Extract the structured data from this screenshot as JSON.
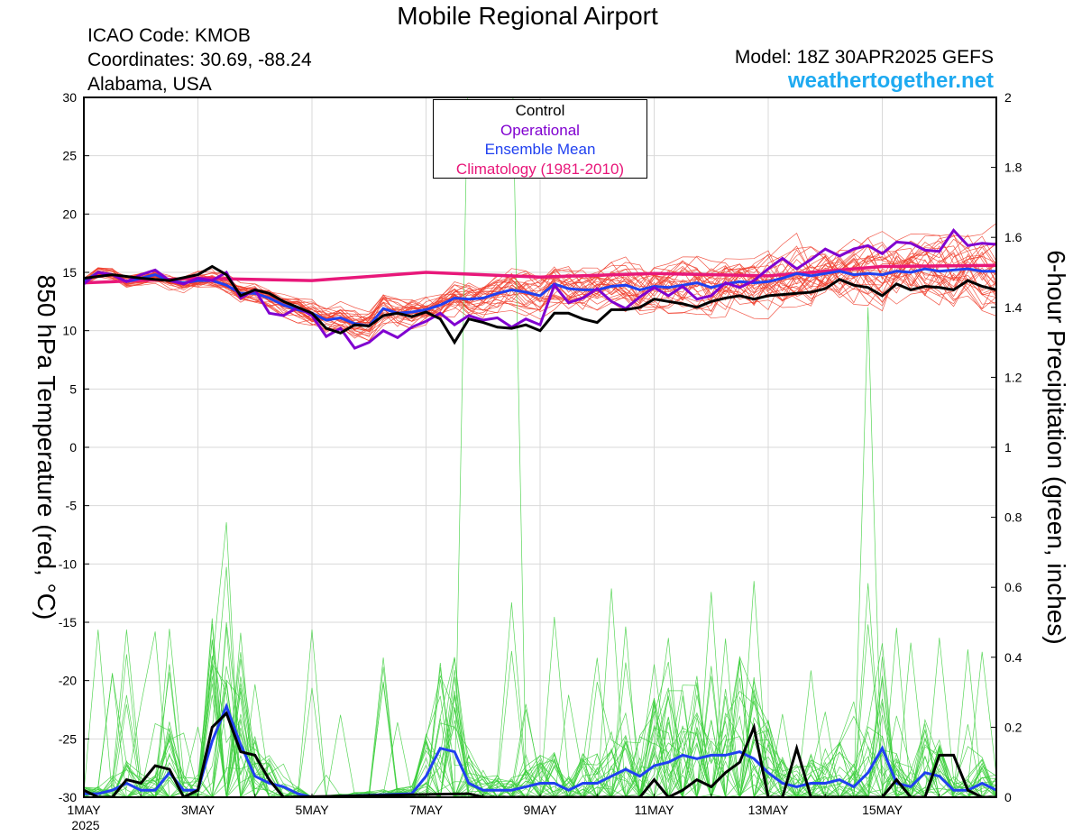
{
  "header": {
    "title": "Mobile Regional Airport",
    "icao": "ICAO Code: KMOB",
    "coordinates": "Coordinates: 30.69, -88.24",
    "region": "Alabama, USA",
    "model": "Model: 18Z 30APR2025 GEFS",
    "site": "weathertogether.net"
  },
  "legend": {
    "control": "Control",
    "operational": "Operational",
    "ensemble_mean": "Ensemble Mean",
    "climatology": "Climatology (1981-2010)"
  },
  "colors": {
    "control": "#000000",
    "operational": "#8000d0",
    "ensemble_mean": "#2040f0",
    "climatology": "#e8187a",
    "temp_members": "#f03c2a",
    "precip_members": "#3ccf3c",
    "site": "#1eaaf1"
  },
  "chart_data": {
    "type": "line",
    "ylabel": "850 hPa Temperature (red, °C)",
    "y2label": "6-hour Precipitation (green, inches)",
    "ylim": [
      -30,
      30
    ],
    "y2lim": [
      0,
      2
    ],
    "yticks": [
      30,
      25,
      20,
      15,
      10,
      5,
      0,
      -5,
      -10,
      -15,
      -20,
      -25,
      -30
    ],
    "y2ticks": [
      2,
      1.8,
      1.6,
      1.4,
      1.2,
      1,
      0.8,
      0.6,
      0.4,
      0.2,
      0
    ],
    "xlim_days": [
      0,
      16
    ],
    "x_ticks": [
      {
        "day": 0,
        "label": "1MAY",
        "sub": "2025"
      },
      {
        "day": 2,
        "label": "3MAY"
      },
      {
        "day": 4,
        "label": "5MAY"
      },
      {
        "day": 6,
        "label": "7MAY"
      },
      {
        "day": 8,
        "label": "9MAY"
      },
      {
        "day": 10,
        "label": "11MAY"
      },
      {
        "day": 12,
        "label": "13MAY"
      },
      {
        "day": 14,
        "label": "15MAY"
      }
    ],
    "temperature": {
      "climatology": [
        [
          0,
          14.1
        ],
        [
          2,
          14.5
        ],
        [
          4,
          14.3
        ],
        [
          6,
          15.0
        ],
        [
          8,
          14.6
        ],
        [
          10,
          14.9
        ],
        [
          12,
          14.7
        ],
        [
          14,
          15.5
        ],
        [
          16,
          15.6
        ]
      ],
      "control": [
        [
          0,
          14.5
        ],
        [
          0.5,
          14.8
        ],
        [
          1,
          14.5
        ],
        [
          1.5,
          14.3
        ],
        [
          2,
          14.8
        ],
        [
          2.25,
          15.5
        ],
        [
          2.5,
          14.8
        ],
        [
          2.75,
          13.0
        ],
        [
          3,
          13.5
        ],
        [
          3.25,
          13.2
        ],
        [
          3.5,
          12.5
        ],
        [
          3.75,
          12.0
        ],
        [
          4,
          11.5
        ],
        [
          4.25,
          10.2
        ],
        [
          4.5,
          9.8
        ],
        [
          4.75,
          10.5
        ],
        [
          5,
          10.4
        ],
        [
          5.25,
          11.3
        ],
        [
          5.5,
          11.5
        ],
        [
          5.75,
          11.2
        ],
        [
          6,
          11.6
        ],
        [
          6.25,
          11.0
        ],
        [
          6.5,
          9.0
        ],
        [
          6.75,
          11.0
        ],
        [
          7,
          10.7
        ],
        [
          7.25,
          10.3
        ],
        [
          7.5,
          10.2
        ],
        [
          7.75,
          10.5
        ],
        [
          8,
          10.0
        ],
        [
          8.25,
          11.5
        ],
        [
          8.5,
          11.5
        ],
        [
          8.75,
          11.0
        ],
        [
          9,
          10.7
        ],
        [
          9.25,
          11.8
        ],
        [
          9.5,
          11.8
        ],
        [
          9.75,
          12.0
        ],
        [
          10,
          12.7
        ],
        [
          10.25,
          12.5
        ],
        [
          10.5,
          12.3
        ],
        [
          10.75,
          12.0
        ],
        [
          11,
          12.5
        ],
        [
          11.25,
          12.8
        ],
        [
          11.5,
          13.0
        ],
        [
          11.75,
          12.7
        ],
        [
          12,
          13.0
        ],
        [
          12.25,
          13.1
        ],
        [
          12.5,
          13.2
        ],
        [
          12.75,
          13.3
        ],
        [
          13,
          13.6
        ],
        [
          13.25,
          14.4
        ],
        [
          13.5,
          13.9
        ],
        [
          13.75,
          13.7
        ],
        [
          14,
          13.0
        ],
        [
          14.25,
          14.0
        ],
        [
          14.5,
          13.5
        ],
        [
          14.75,
          13.8
        ],
        [
          15,
          13.7
        ],
        [
          15.25,
          13.5
        ],
        [
          15.5,
          14.3
        ],
        [
          15.75,
          13.8
        ],
        [
          16,
          13.5
        ]
      ],
      "operational": [
        [
          0,
          14.0
        ],
        [
          0.25,
          15.0
        ],
        [
          0.5,
          14.8
        ],
        [
          0.75,
          14.2
        ],
        [
          1,
          14.8
        ],
        [
          1.25,
          15.2
        ],
        [
          1.5,
          14.3
        ],
        [
          1.75,
          14.0
        ],
        [
          2,
          14.5
        ],
        [
          2.25,
          14.3
        ],
        [
          2.5,
          15.0
        ],
        [
          2.75,
          12.8
        ],
        [
          3,
          13.5
        ],
        [
          3.25,
          11.5
        ],
        [
          3.5,
          11.3
        ],
        [
          3.75,
          12.0
        ],
        [
          4,
          11.3
        ],
        [
          4.25,
          9.5
        ],
        [
          4.5,
          10.2
        ],
        [
          4.75,
          8.5
        ],
        [
          5,
          9.0
        ],
        [
          5.25,
          10.0
        ],
        [
          5.5,
          9.4
        ],
        [
          5.75,
          10.3
        ],
        [
          6,
          10.8
        ],
        [
          6.25,
          11.5
        ],
        [
          6.5,
          10.5
        ],
        [
          6.75,
          11.3
        ],
        [
          7,
          10.9
        ],
        [
          7.25,
          11.1
        ],
        [
          7.5,
          10.3
        ],
        [
          7.75,
          11.0
        ],
        [
          8,
          10.5
        ],
        [
          8.25,
          13.9
        ],
        [
          8.5,
          12.4
        ],
        [
          8.75,
          12.8
        ],
        [
          9,
          13.6
        ],
        [
          9.25,
          12.5
        ],
        [
          9.5,
          11.9
        ],
        [
          9.75,
          12.9
        ],
        [
          10,
          13.7
        ],
        [
          10.25,
          13.0
        ],
        [
          10.5,
          13.8
        ],
        [
          10.75,
          12.7
        ],
        [
          11,
          13.0
        ],
        [
          11.25,
          14.1
        ],
        [
          11.5,
          13.7
        ],
        [
          11.75,
          14.3
        ],
        [
          12,
          15.3
        ],
        [
          12.25,
          16.2
        ],
        [
          12.5,
          15.3
        ],
        [
          12.75,
          16.1
        ],
        [
          13,
          17.0
        ],
        [
          13.25,
          16.4
        ],
        [
          13.5,
          17.0
        ],
        [
          13.75,
          17.3
        ],
        [
          14,
          16.6
        ],
        [
          14.25,
          17.6
        ],
        [
          14.5,
          17.5
        ],
        [
          14.75,
          16.9
        ],
        [
          15,
          16.8
        ],
        [
          15.25,
          18.6
        ],
        [
          15.5,
          17.3
        ],
        [
          15.75,
          17.5
        ],
        [
          16,
          17.4
        ]
      ],
      "ensemble_mean": [
        [
          0,
          14.2
        ],
        [
          0.25,
          15.0
        ],
        [
          0.5,
          14.8
        ],
        [
          0.75,
          14.2
        ],
        [
          1,
          14.5
        ],
        [
          1.25,
          14.8
        ],
        [
          1.5,
          14.3
        ],
        [
          1.75,
          14.1
        ],
        [
          2,
          14.3
        ],
        [
          2.25,
          14.3
        ],
        [
          2.5,
          13.9
        ],
        [
          2.75,
          13.2
        ],
        [
          3,
          13.2
        ],
        [
          3.25,
          12.8
        ],
        [
          3.5,
          12.2
        ],
        [
          3.75,
          11.8
        ],
        [
          4,
          11.5
        ],
        [
          4.25,
          10.9
        ],
        [
          4.5,
          11.1
        ],
        [
          4.75,
          10.6
        ],
        [
          5,
          10.4
        ],
        [
          5.25,
          11.9
        ],
        [
          5.5,
          11.5
        ],
        [
          5.75,
          11.6
        ],
        [
          6,
          11.8
        ],
        [
          6.25,
          12.2
        ],
        [
          6.5,
          12.8
        ],
        [
          6.75,
          12.7
        ],
        [
          7,
          12.8
        ],
        [
          7.25,
          13.2
        ],
        [
          7.5,
          13.5
        ],
        [
          7.75,
          13.3
        ],
        [
          8,
          13.0
        ],
        [
          8.25,
          14.0
        ],
        [
          8.5,
          13.6
        ],
        [
          8.75,
          13.5
        ],
        [
          9,
          13.5
        ],
        [
          9.25,
          13.8
        ],
        [
          9.5,
          13.9
        ],
        [
          9.75,
          13.5
        ],
        [
          10,
          13.8
        ],
        [
          10.25,
          13.7
        ],
        [
          10.5,
          13.9
        ],
        [
          10.75,
          14.1
        ],
        [
          11,
          13.7
        ],
        [
          11.25,
          14.0
        ],
        [
          11.5,
          14.2
        ],
        [
          11.75,
          14.1
        ],
        [
          12,
          14.2
        ],
        [
          12.25,
          14.5
        ],
        [
          12.5,
          14.9
        ],
        [
          12.75,
          14.7
        ],
        [
          13,
          14.9
        ],
        [
          13.25,
          15.1
        ],
        [
          13.5,
          14.8
        ],
        [
          13.75,
          14.9
        ],
        [
          14,
          14.8
        ],
        [
          14.25,
          15.1
        ],
        [
          14.5,
          15.0
        ],
        [
          14.75,
          15.3
        ],
        [
          15,
          15.1
        ],
        [
          15.25,
          15.2
        ],
        [
          15.5,
          15.3
        ],
        [
          15.75,
          15.1
        ],
        [
          16,
          15.1
        ]
      ]
    },
    "precipitation": {
      "control": [
        [
          0,
          0.02
        ],
        [
          0.25,
          0.0
        ],
        [
          0.5,
          0.0
        ],
        [
          0.75,
          0.05
        ],
        [
          1,
          0.04
        ],
        [
          1.25,
          0.09
        ],
        [
          1.5,
          0.08
        ],
        [
          1.75,
          0.0
        ],
        [
          2,
          0.02
        ],
        [
          2.25,
          0.2
        ],
        [
          2.5,
          0.24
        ],
        [
          2.75,
          0.13
        ],
        [
          3,
          0.12
        ],
        [
          3.25,
          0.05
        ],
        [
          3.5,
          0.0
        ],
        [
          6.75,
          0.01
        ],
        [
          7,
          0.0
        ],
        [
          9.75,
          0.0
        ],
        [
          10,
          0.05
        ],
        [
          10.25,
          0.0
        ],
        [
          10.5,
          0.02
        ],
        [
          10.75,
          0.05
        ],
        [
          11,
          0.03
        ],
        [
          11.25,
          0.07
        ],
        [
          11.5,
          0.1
        ],
        [
          11.75,
          0.2
        ],
        [
          12,
          0.0
        ],
        [
          12.25,
          0.0
        ],
        [
          12.5,
          0.14
        ],
        [
          12.75,
          0.0
        ],
        [
          14,
          0.0
        ],
        [
          14.25,
          0.05
        ],
        [
          14.5,
          0.0
        ],
        [
          14.75,
          0.0
        ],
        [
          15,
          0.12
        ],
        [
          15.25,
          0.12
        ],
        [
          15.5,
          0.02
        ],
        [
          15.75,
          0.0
        ],
        [
          16,
          0.0
        ]
      ],
      "ensemble_mean": [
        [
          0,
          0.01
        ],
        [
          0.25,
          0.01
        ],
        [
          0.5,
          0.02
        ],
        [
          0.75,
          0.04
        ],
        [
          1,
          0.02
        ],
        [
          1.25,
          0.02
        ],
        [
          1.5,
          0.07
        ],
        [
          1.75,
          0.02
        ],
        [
          2,
          0.02
        ],
        [
          2.25,
          0.16
        ],
        [
          2.5,
          0.26
        ],
        [
          2.75,
          0.15
        ],
        [
          3,
          0.06
        ],
        [
          3.25,
          0.04
        ],
        [
          3.5,
          0.03
        ],
        [
          3.75,
          0.01
        ],
        [
          4,
          0.0
        ],
        [
          5.75,
          0.01
        ],
        [
          6,
          0.06
        ],
        [
          6.25,
          0.14
        ],
        [
          6.5,
          0.13
        ],
        [
          6.75,
          0.04
        ],
        [
          7,
          0.02
        ],
        [
          7.25,
          0.02
        ],
        [
          7.5,
          0.02
        ],
        [
          7.75,
          0.03
        ],
        [
          8,
          0.04
        ],
        [
          8.25,
          0.04
        ],
        [
          8.5,
          0.02
        ],
        [
          8.75,
          0.04
        ],
        [
          9,
          0.04
        ],
        [
          9.25,
          0.06
        ],
        [
          9.5,
          0.08
        ],
        [
          9.75,
          0.06
        ],
        [
          10,
          0.09
        ],
        [
          10.25,
          0.1
        ],
        [
          10.5,
          0.12
        ],
        [
          10.75,
          0.11
        ],
        [
          11,
          0.12
        ],
        [
          11.25,
          0.12
        ],
        [
          11.5,
          0.13
        ],
        [
          11.75,
          0.11
        ],
        [
          12,
          0.07
        ],
        [
          12.25,
          0.04
        ],
        [
          12.5,
          0.03
        ],
        [
          12.75,
          0.04
        ],
        [
          13,
          0.04
        ],
        [
          13.25,
          0.05
        ],
        [
          13.5,
          0.03
        ],
        [
          13.75,
          0.07
        ],
        [
          14,
          0.14
        ],
        [
          14.25,
          0.04
        ],
        [
          14.5,
          0.03
        ],
        [
          14.75,
          0.07
        ],
        [
          15,
          0.06
        ],
        [
          15.25,
          0.02
        ],
        [
          15.5,
          0.02
        ],
        [
          15.75,
          0.04
        ],
        [
          16,
          0.02
        ]
      ]
    }
  }
}
